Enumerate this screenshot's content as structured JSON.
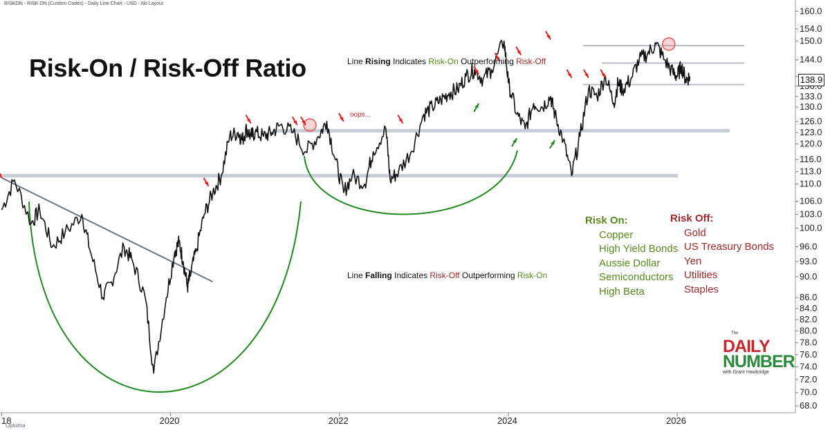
{
  "header": "RISKON - RISK ON (Custom Codes) - Daily Line Chart - USD - No Layout",
  "title": "Risk-On / Risk-Off Ratio",
  "notes": {
    "rising": {
      "p1": "Line ",
      "bold": "Rising",
      "p2": " Indicates ",
      "g": "Risk-On",
      "p3": " Outperforming ",
      "r": "Risk-Off"
    },
    "falling": {
      "p1": "Line ",
      "bold": "Falling",
      "p2": " Indicates ",
      "r": "Risk-Off",
      "p3": " Outperforming ",
      "g": "Risk-On"
    },
    "oops": "oops..."
  },
  "risk_on": {
    "heading": "Risk On:",
    "items": [
      "Copper",
      "High Yield Bonds",
      "Aussie Dollar",
      "Semiconductors",
      "High Beta"
    ]
  },
  "risk_off": {
    "heading": "Risk Off:",
    "items": [
      "Gold",
      "US Treasury Bonds",
      "Yen",
      "Utilities",
      "Staples"
    ]
  },
  "logo": {
    "the": "The",
    "daily": "DAILY",
    "number": "NUMBER",
    "with": "with Grant Hawkridge"
  },
  "branding": "Optuma",
  "colors": {
    "line": "#111111",
    "support": "#c8ccd6",
    "trend": "#6b7385",
    "arc": "#1e8a1e",
    "arrow_red": "#e02020",
    "arrow_green": "#1e8a1e",
    "risk_on": "#5a8a1e",
    "risk_off": "#a0282b"
  },
  "chart_data": {
    "type": "line",
    "title": "Risk-On / Risk-Off Ratio",
    "xlabel": "",
    "ylabel": "",
    "x_ticks": [
      "18",
      "2020",
      "2022",
      "2024",
      "2026"
    ],
    "x_tick_years": [
      2018,
      2020,
      2022,
      2024,
      2026
    ],
    "xlim": [
      2017.98,
      2027.4
    ],
    "y_ticks": [
      160.0,
      154.0,
      150.0,
      144.0,
      138.9,
      136.0,
      133.0,
      130.0,
      126.0,
      123.0,
      120.0,
      116.0,
      113.0,
      110.0,
      106.0,
      103.0,
      100.0,
      96.0,
      93.0,
      90.0,
      86.0,
      84.0,
      82.0,
      80.0,
      78.0,
      76.0,
      74.0,
      72.0,
      70.0,
      68.0
    ],
    "y_tick_labels": [
      "160.0",
      "154.0",
      "150.0",
      "144.0",
      "",
      "136.0",
      "133.0",
      "130.0",
      "126.0",
      "123.0",
      "120.0",
      "116.0",
      "113.0",
      "110.0",
      "106.0",
      "103.0",
      "100.0",
      "96.0",
      "93.0",
      "90.0",
      "86.0",
      "84.0",
      "82.0",
      "80.0",
      "78.0",
      "76.0",
      "74.0",
      "72.0",
      "70.0",
      "68.0"
    ],
    "ylim": [
      67,
      162
    ],
    "y_scale": "log",
    "last_value": "138.9",
    "series": [
      {
        "name": "RISKON",
        "x": [
          2018.0,
          2018.15,
          2018.35,
          2018.45,
          2018.6,
          2018.75,
          2018.95,
          2019.05,
          2019.2,
          2019.3,
          2019.45,
          2019.55,
          2019.7,
          2019.8,
          2019.95,
          2020.05,
          2020.1,
          2020.15,
          2020.2,
          2020.23,
          2020.3,
          2020.4,
          2020.5,
          2020.6,
          2020.7,
          2020.8,
          2020.85,
          2020.9,
          2020.95,
          2021.0,
          2021.1,
          2021.2,
          2021.3,
          2021.45,
          2021.6,
          2021.75,
          2021.85,
          2021.95,
          2022.05,
          2022.15,
          2022.3,
          2022.4,
          2022.55,
          2022.6,
          2022.7,
          2022.85,
          2023.0,
          2023.1,
          2023.2,
          2023.3,
          2023.4,
          2023.5,
          2023.6,
          2023.7,
          2023.8,
          2023.95,
          2024.0,
          2024.1,
          2024.2,
          2024.3,
          2024.4,
          2024.5,
          2024.55,
          2024.65,
          2024.75,
          2024.85,
          2024.95,
          2025.05,
          2025.15,
          2025.25,
          2025.3,
          2025.35,
          2025.45,
          2025.55,
          2025.65,
          2025.75,
          2025.85,
          2025.95,
          2026.0,
          2026.05,
          2026.1,
          2026.15
        ],
        "values": [
          104,
          111,
          101,
          104,
          96,
          99,
          103,
          95,
          86,
          89,
          96,
          93,
          86,
          73,
          86,
          95,
          97,
          93,
          88,
          90,
          95,
          103,
          108,
          112,
          122,
          123,
          121,
          124,
          122,
          123,
          122,
          123,
          125,
          123,
          118,
          122,
          126,
          116,
          108,
          112,
          110,
          118,
          124,
          111,
          113,
          118,
          128,
          130,
          132,
          134,
          135,
          139,
          141,
          138,
          141,
          150,
          137,
          128,
          124,
          131,
          130,
          133,
          128,
          121,
          112,
          122,
          135,
          133,
          139,
          131,
          137,
          135,
          138,
          144,
          146,
          149,
          144,
          140,
          139,
          142,
          138,
          138.9
        ]
      }
    ],
    "annotations": {
      "resistance_levels": [
        123.5,
        112.0,
        148.5,
        143.0,
        136.5
      ],
      "downtrend": {
        "from": [
          2018.0,
          111.5
        ],
        "to": [
          2020.5,
          89.0
        ]
      },
      "down_arrows": [
        [
          2018.0,
          111.5
        ],
        [
          2020.45,
          109.5
        ],
        [
          2020.95,
          125.5
        ],
        [
          2021.5,
          125.0
        ],
        [
          2021.6,
          125.0
        ],
        [
          2022.05,
          126.0
        ],
        [
          2022.75,
          125.5
        ],
        [
          2023.65,
          139.5
        ],
        [
          2023.9,
          143.5
        ],
        [
          2024.15,
          145.5
        ],
        [
          2024.5,
          150.5
        ],
        [
          2024.75,
          138.5
        ],
        [
          2024.95,
          138.5
        ],
        [
          2025.15,
          138.5
        ]
      ],
      "up_arrows": [
        [
          2023.65,
          131.0
        ],
        [
          2024.1,
          121.5
        ],
        [
          2024.55,
          121.0
        ]
      ],
      "circle_points": [
        [
          2021.65,
          125.0
        ],
        [
          2025.9,
          149.0
        ]
      ]
    }
  }
}
